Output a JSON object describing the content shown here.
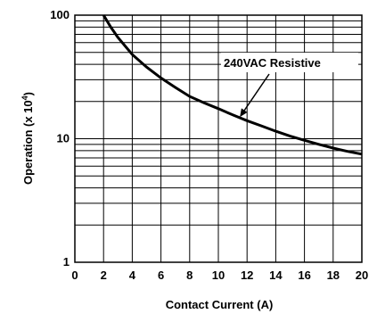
{
  "chart_data": {
    "type": "line",
    "xlabel": "Contact Current (A)",
    "ylabel_main": "Operation (x 10",
    "ylabel_exp": "4",
    "ylabel_close": ")",
    "xlim": [
      0,
      20
    ],
    "ylim": [
      1,
      100
    ],
    "y_scale": "log",
    "grid": true,
    "x_ticks": [
      0,
      2,
      4,
      6,
      8,
      10,
      12,
      14,
      16,
      18,
      20
    ],
    "x_tick_labels": [
      "0",
      "2",
      "4",
      "6",
      "8",
      "10",
      "12",
      "14",
      "16",
      "18",
      "20"
    ],
    "y_tick_labels": [
      "1",
      "10",
      "100"
    ],
    "y_ticks": [
      1,
      10,
      100
    ],
    "series": [
      {
        "name": "240VAC Resistive",
        "x": [
          2,
          2.5,
          3,
          4,
          5,
          6,
          7,
          8,
          9,
          10,
          11,
          12,
          13,
          14,
          15,
          16,
          17,
          18,
          19,
          20
        ],
        "y": [
          100,
          80,
          66,
          48,
          38,
          31,
          26,
          22,
          19.5,
          17.5,
          15.6,
          14,
          12.7,
          11.5,
          10.5,
          9.7,
          9.0,
          8.4,
          7.9,
          7.5
        ]
      }
    ],
    "annotation": {
      "text": "240VAC Resistive",
      "arrow_to": [
        11.5,
        15
      ]
    }
  }
}
